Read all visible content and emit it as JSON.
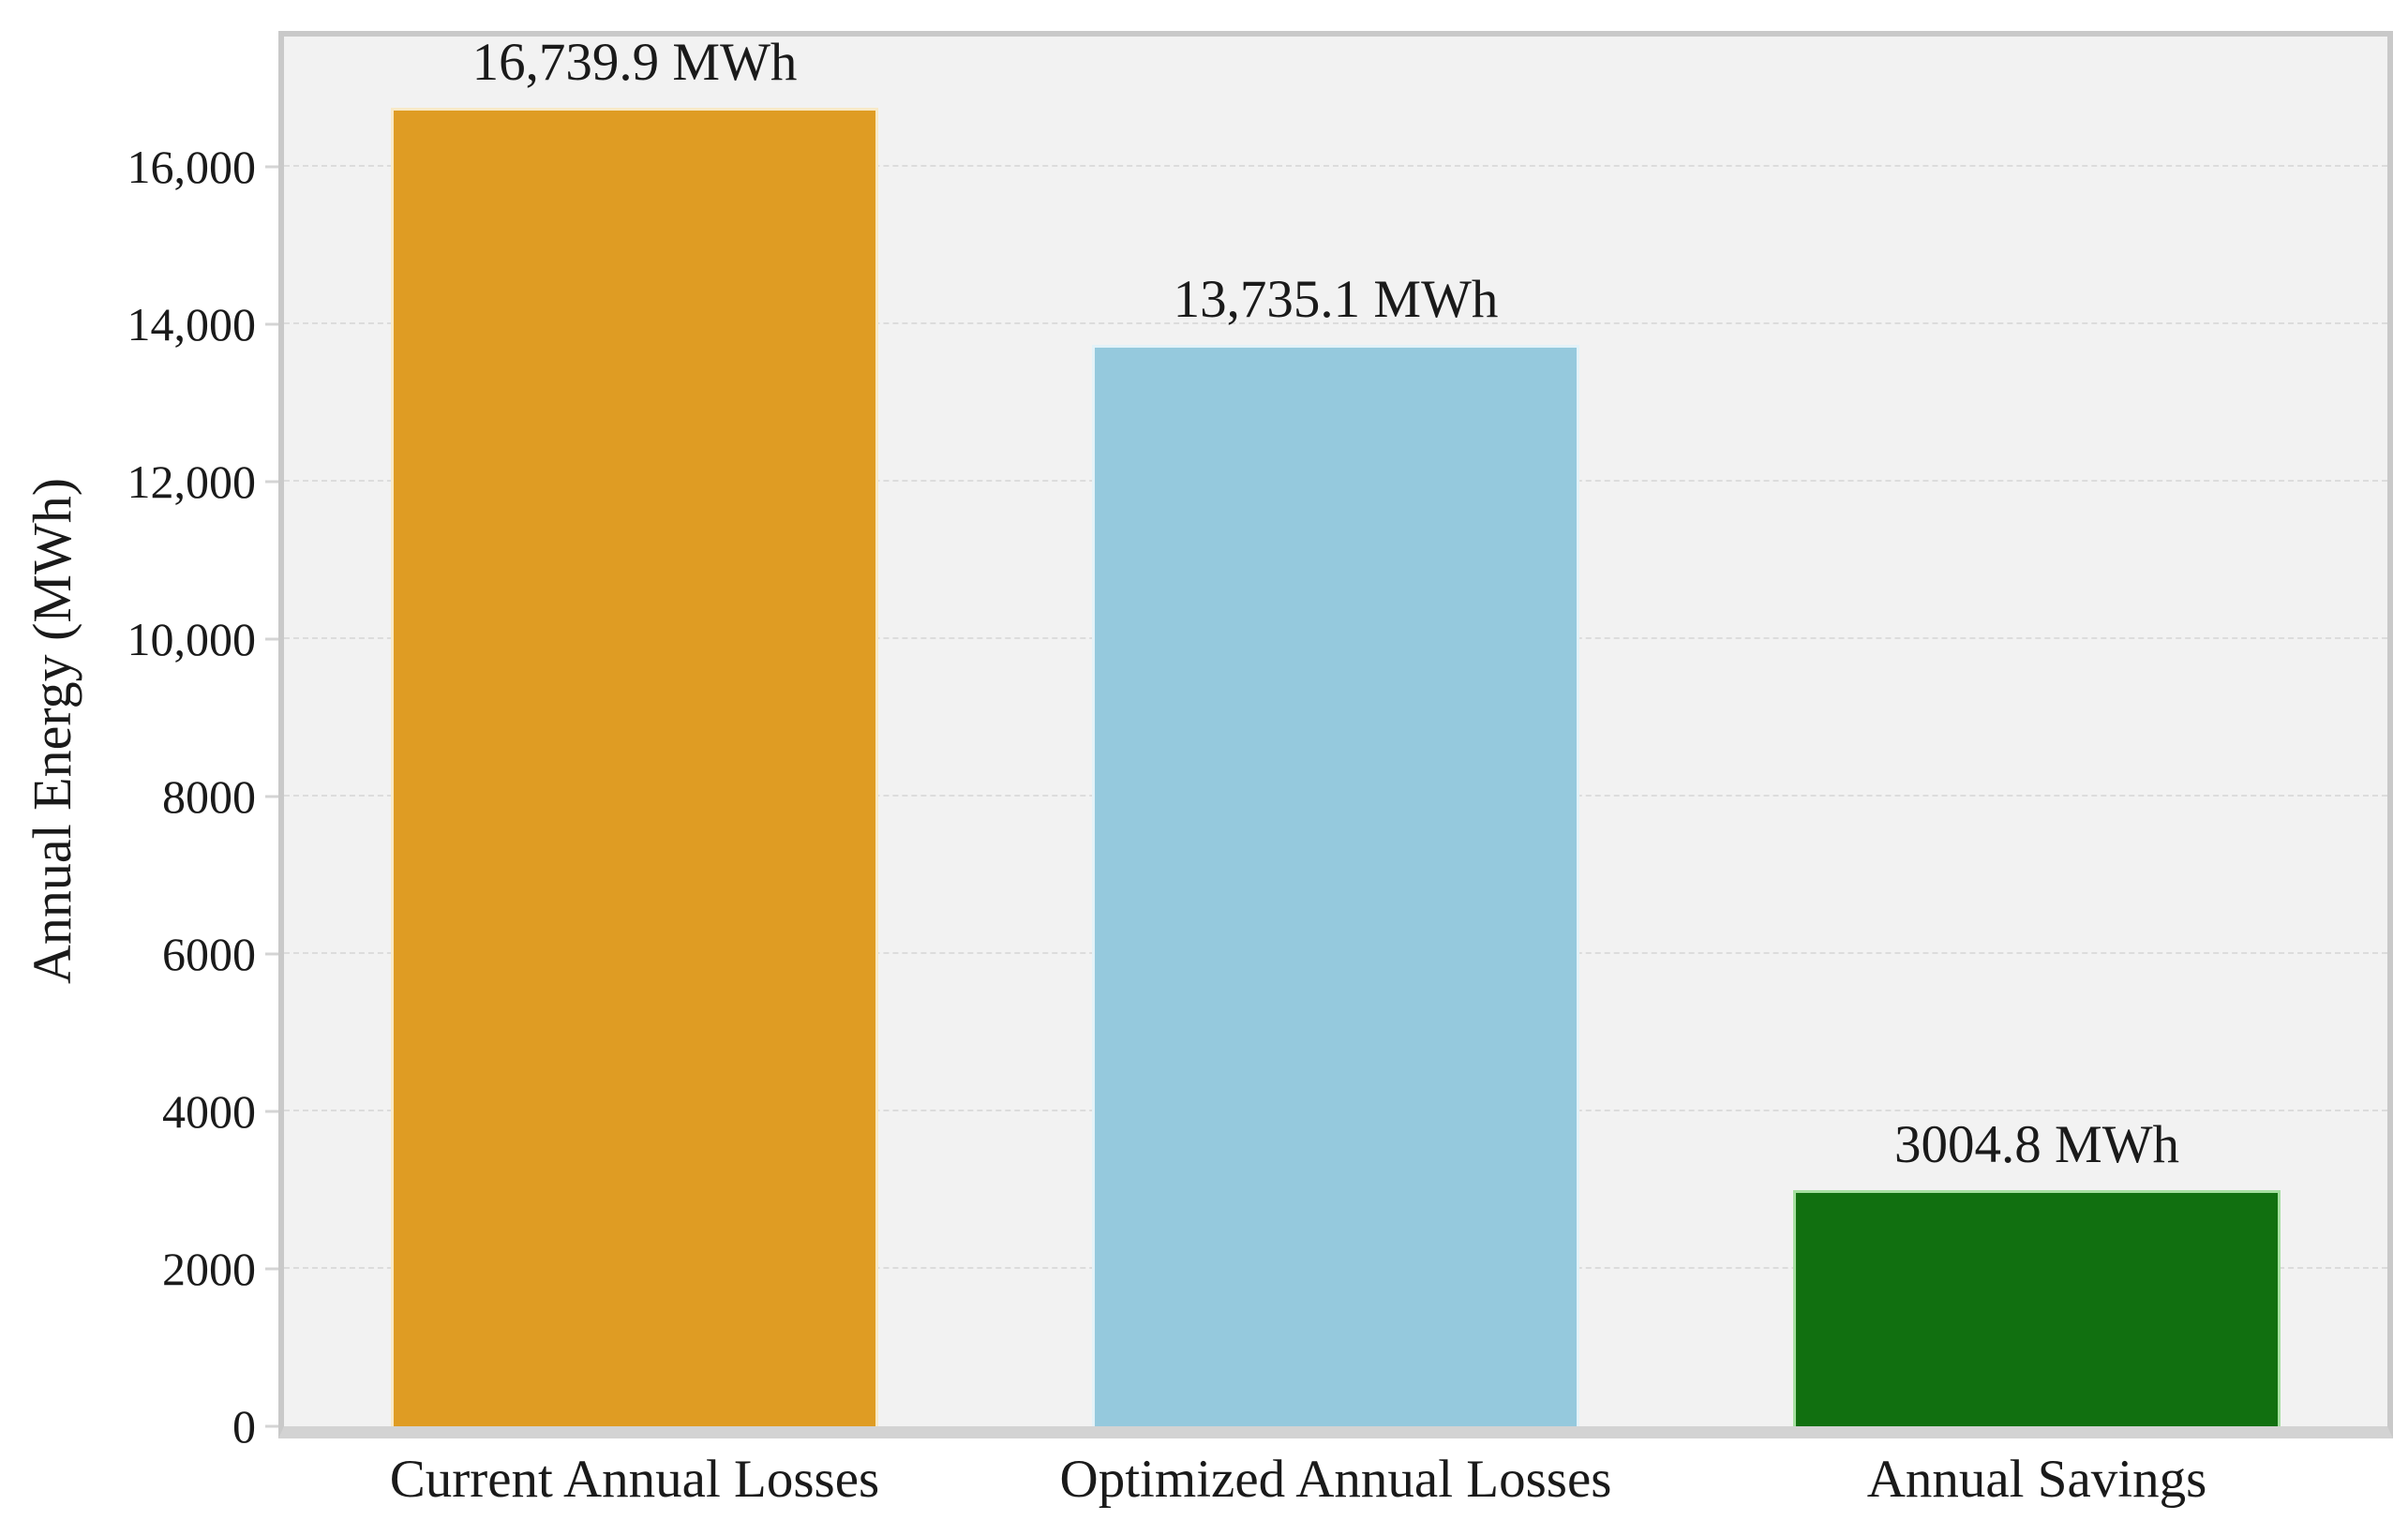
{
  "figure": {
    "background_color": "#ffffff",
    "plot_background_color": "#f2f2f2",
    "gridline_color": "#dcdcdc",
    "spine_color": "#c9c9c9",
    "text_color": "#1a1a1a"
  },
  "chart_data": {
    "type": "bar",
    "title": "",
    "xlabel": "",
    "ylabel": "Annual Energy (MWh)",
    "categories": [
      "Current Annual Losses",
      "Optimized Annual Losses",
      "Annual Savings"
    ],
    "values": [
      16739.9,
      13735.1,
      3004.8
    ],
    "bar_value_labels": [
      "16,739.9 MWh",
      "13,735.1 MWh",
      "3004.8 MWh"
    ],
    "bar_colors": [
      "#df9c23",
      "#95c9dd",
      "#117010"
    ],
    "bar_edge_colors": [
      "#f8e9c6",
      "#e3f2f8",
      "#a5dfa0"
    ],
    "bar_width_fraction": 0.232,
    "ylim": [
      0,
      17650
    ],
    "yticks": [
      {
        "value": 0,
        "label": "0"
      },
      {
        "value": 2000,
        "label": "2000"
      },
      {
        "value": 4000,
        "label": "4000"
      },
      {
        "value": 6000,
        "label": "6000"
      },
      {
        "value": 8000,
        "label": "8000"
      },
      {
        "value": 10000,
        "label": "10,000"
      },
      {
        "value": 12000,
        "label": "12,000"
      },
      {
        "value": 14000,
        "label": "14,000"
      },
      {
        "value": 16000,
        "label": "16,000"
      }
    ],
    "grid": "horizontal-dashed",
    "legend_position": "none"
  }
}
